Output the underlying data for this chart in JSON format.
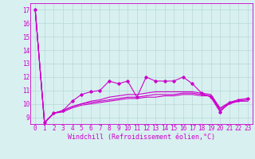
{
  "title": "",
  "xlabel": "Windchill (Refroidissement éolien,°C)",
  "ylabel": "",
  "bg_color": "#d8f0f0",
  "grid_color": "#b8d8d8",
  "line_color": "#cc00cc",
  "xlim": [
    -0.5,
    23.5
  ],
  "ylim": [
    8.5,
    17.5
  ],
  "yticks": [
    9,
    10,
    11,
    12,
    13,
    14,
    15,
    16,
    17
  ],
  "xticks": [
    0,
    1,
    2,
    3,
    4,
    5,
    6,
    7,
    8,
    9,
    10,
    11,
    12,
    13,
    14,
    15,
    16,
    17,
    18,
    19,
    20,
    21,
    22,
    23
  ],
  "series": [
    [
      17.0,
      8.6,
      9.3,
      9.5,
      10.2,
      10.7,
      10.9,
      11.0,
      11.7,
      11.5,
      11.7,
      10.5,
      12.0,
      11.7,
      11.7,
      11.7,
      12.0,
      11.5,
      10.8,
      10.5,
      9.4,
      10.1,
      10.3,
      10.4
    ],
    [
      17.0,
      8.6,
      9.3,
      9.5,
      9.8,
      10.0,
      10.2,
      10.3,
      10.5,
      10.6,
      10.7,
      10.7,
      10.8,
      10.9,
      10.9,
      10.9,
      10.9,
      10.9,
      10.8,
      10.7,
      9.7,
      10.1,
      10.3,
      10.4
    ],
    [
      17.0,
      8.6,
      9.3,
      9.5,
      9.8,
      10.0,
      10.1,
      10.2,
      10.3,
      10.4,
      10.5,
      10.5,
      10.6,
      10.7,
      10.7,
      10.7,
      10.8,
      10.8,
      10.7,
      10.6,
      9.6,
      10.1,
      10.2,
      10.3
    ],
    [
      17.0,
      8.6,
      9.3,
      9.4,
      9.7,
      9.9,
      10.0,
      10.1,
      10.2,
      10.3,
      10.4,
      10.4,
      10.5,
      10.5,
      10.6,
      10.6,
      10.7,
      10.7,
      10.6,
      10.6,
      9.5,
      10.0,
      10.2,
      10.2
    ]
  ],
  "marker": "D",
  "marker_size": 1.8,
  "line_width": 0.8,
  "font_family": "monospace",
  "xlabel_fontsize": 6.0,
  "tick_fontsize": 5.5,
  "fig_width": 3.2,
  "fig_height": 2.0,
  "dpi": 100
}
